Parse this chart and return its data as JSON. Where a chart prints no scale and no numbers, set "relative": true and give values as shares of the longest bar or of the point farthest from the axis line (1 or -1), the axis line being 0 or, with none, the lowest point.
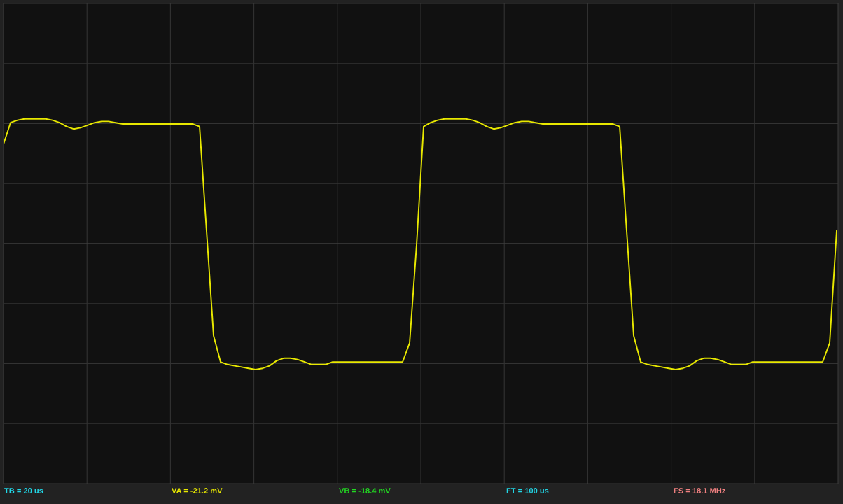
{
  "chart_data": {
    "type": "line",
    "relative": true,
    "grid": true,
    "categories": [
      null,
      null,
      null,
      null,
      null,
      null,
      null,
      null,
      null,
      null,
      null,
      null,
      null,
      null,
      null,
      null,
      null,
      null,
      null,
      null,
      null,
      null,
      null,
      null,
      null,
      null,
      null,
      null,
      null,
      null,
      null,
      null,
      null,
      null,
      null,
      null,
      null,
      null,
      null,
      null,
      null,
      null,
      null,
      null,
      null,
      null,
      null,
      null,
      null,
      null,
      null,
      null,
      null,
      null,
      null,
      null,
      null,
      null,
      null,
      null,
      null,
      null,
      null,
      null,
      null,
      null,
      null,
      null,
      null,
      null,
      null,
      null,
      null,
      null,
      null,
      null,
      null,
      null,
      null,
      null,
      null,
      null,
      null,
      null,
      null,
      null,
      null,
      null,
      null,
      null,
      null,
      null,
      null,
      null,
      null,
      null,
      null,
      null,
      null,
      null,
      null,
      null,
      null,
      null,
      null,
      null,
      null,
      null,
      null,
      null,
      null,
      null,
      null,
      null,
      null,
      null,
      null,
      null,
      null,
      null
    ],
    "series": [
      {
        "color": "#e8e800",
        "values": [
          0.79,
          0.96,
          0.98,
          0.99,
          0.99,
          0.99,
          0.99,
          0.98,
          0.96,
          0.93,
          0.91,
          0.92,
          0.94,
          0.96,
          0.97,
          0.97,
          0.96,
          0.95,
          0.95,
          0.95,
          0.95,
          0.95,
          0.95,
          0.95,
          0.95,
          0.95,
          0.95,
          0.95,
          0.93,
          0.1,
          -0.73,
          -0.94,
          -0.96,
          -0.97,
          -0.98,
          -0.99,
          -1.0,
          -0.99,
          -0.97,
          -0.93,
          -0.91,
          -0.91,
          -0.92,
          -0.94,
          -0.96,
          -0.96,
          -0.96,
          -0.94,
          -0.94,
          -0.94,
          -0.94,
          -0.94,
          -0.94,
          -0.94,
          -0.94,
          -0.94,
          -0.94,
          -0.94,
          -0.79,
          -0.01,
          0.93,
          0.96,
          0.98,
          0.99,
          0.99,
          0.99,
          0.99,
          0.98,
          0.96,
          0.93,
          0.91,
          0.92,
          0.94,
          0.96,
          0.97,
          0.97,
          0.96,
          0.95,
          0.95,
          0.95,
          0.95,
          0.95,
          0.95,
          0.95,
          0.95,
          0.95,
          0.95,
          0.95,
          0.93,
          0.1,
          -0.73,
          -0.94,
          -0.96,
          -0.97,
          -0.98,
          -0.99,
          -1.0,
          -0.99,
          -0.97,
          -0.93,
          -0.91,
          -0.91,
          -0.92,
          -0.94,
          -0.96,
          -0.96,
          -0.96,
          -0.94,
          -0.94,
          -0.94,
          -0.94,
          -0.94,
          -0.94,
          -0.94,
          -0.94,
          -0.94,
          -0.94,
          -0.94,
          -0.79,
          0.1
        ]
      }
    ],
    "annotations": [
      "TB = 20 us",
      "VA = -21.2 mV",
      "VB = -18.4 mV",
      "FT = 100 us",
      "FS = 18.1 MHz"
    ]
  }
}
